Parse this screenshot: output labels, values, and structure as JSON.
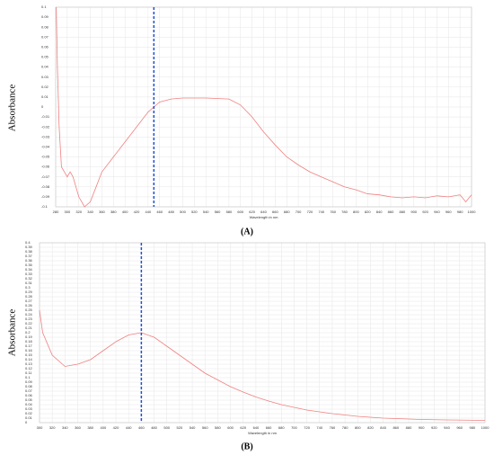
{
  "chart_data": [
    {
      "type": "line",
      "caption": "(A)",
      "ylabel": "Absorbance",
      "xlabel": "Wavelength in nm",
      "xlim": [
        280,
        1000
      ],
      "ylim": [
        -0.1,
        0.1
      ],
      "grid": true,
      "xticks": [
        280,
        300,
        320,
        340,
        360,
        380,
        400,
        420,
        440,
        460,
        480,
        500,
        520,
        540,
        560,
        580,
        600,
        620,
        640,
        660,
        680,
        700,
        720,
        740,
        760,
        780,
        800,
        820,
        840,
        860,
        880,
        900,
        920,
        940,
        960,
        980,
        1000
      ],
      "yticks": [
        0.1,
        0.09,
        0.08,
        0.07,
        0.06,
        0.05,
        0.04,
        0.03,
        0.02,
        0.01,
        0,
        -0.01,
        -0.02,
        -0.03,
        -0.04,
        -0.05,
        -0.06,
        -0.07,
        -0.08,
        -0.09,
        -0.1
      ],
      "vline": 450,
      "vline_color": "#1f4fd6",
      "series": [
        {
          "color": "#f08080",
          "x": [
            281,
            283,
            286,
            290,
            300,
            305,
            310,
            320,
            330,
            340,
            350,
            360,
            380,
            400,
            420,
            440,
            460,
            480,
            500,
            540,
            580,
            600,
            620,
            640,
            660,
            680,
            700,
            720,
            740,
            760,
            780,
            800,
            820,
            840,
            860,
            880,
            900,
            920,
            940,
            960,
            980,
            990,
            1000
          ],
          "values": [
            0.1,
            0.04,
            -0.02,
            -0.06,
            -0.07,
            -0.065,
            -0.07,
            -0.09,
            -0.1,
            -0.095,
            -0.08,
            -0.065,
            -0.05,
            -0.035,
            -0.02,
            -0.005,
            0.005,
            0.008,
            0.009,
            0.009,
            0.008,
            0.002,
            -0.01,
            -0.025,
            -0.038,
            -0.05,
            -0.058,
            -0.065,
            -0.07,
            -0.075,
            -0.08,
            -0.083,
            -0.087,
            -0.088,
            -0.09,
            -0.091,
            -0.09,
            -0.091,
            -0.089,
            -0.09,
            -0.088,
            -0.095,
            -0.088
          ]
        }
      ]
    },
    {
      "type": "line",
      "caption": "(B)",
      "ylabel": "Absorbance",
      "xlabel": "Wavelength in nm",
      "xlim": [
        300,
        1000
      ],
      "ylim": [
        0,
        0.4
      ],
      "grid": true,
      "xticks": [
        300,
        320,
        340,
        360,
        380,
        400,
        420,
        440,
        460,
        480,
        500,
        520,
        540,
        560,
        580,
        600,
        620,
        640,
        660,
        680,
        700,
        720,
        740,
        760,
        780,
        800,
        820,
        840,
        860,
        880,
        900,
        920,
        940,
        960,
        980,
        1000
      ],
      "yticks": [
        0.4,
        0.39,
        0.38,
        0.37,
        0.36,
        0.35,
        0.34,
        0.33,
        0.32,
        0.31,
        0.3,
        0.29,
        0.28,
        0.27,
        0.26,
        0.25,
        0.24,
        0.23,
        0.22,
        0.21,
        0.2,
        0.19,
        0.18,
        0.17,
        0.16,
        0.15,
        0.14,
        0.13,
        0.12,
        0.11,
        0.1,
        0.09,
        0.08,
        0.07,
        0.06,
        0.05,
        0.04,
        0.03,
        0.02,
        0.01,
        0
      ],
      "vline": 460,
      "vline_color": "#1f4fd6",
      "series": [
        {
          "color": "#f08080",
          "x": [
            300,
            305,
            320,
            340,
            360,
            380,
            400,
            420,
            440,
            460,
            480,
            500,
            520,
            540,
            560,
            580,
            600,
            620,
            640,
            660,
            680,
            700,
            720,
            740,
            760,
            780,
            800,
            820,
            840,
            860,
            880,
            900,
            940,
            1000
          ],
          "values": [
            0.25,
            0.2,
            0.15,
            0.125,
            0.13,
            0.14,
            0.16,
            0.18,
            0.195,
            0.2,
            0.19,
            0.17,
            0.15,
            0.13,
            0.11,
            0.095,
            0.08,
            0.068,
            0.057,
            0.048,
            0.04,
            0.034,
            0.028,
            0.024,
            0.02,
            0.017,
            0.014,
            0.012,
            0.01,
            0.009,
            0.008,
            0.007,
            0.006,
            0.005
          ]
        }
      ]
    }
  ]
}
